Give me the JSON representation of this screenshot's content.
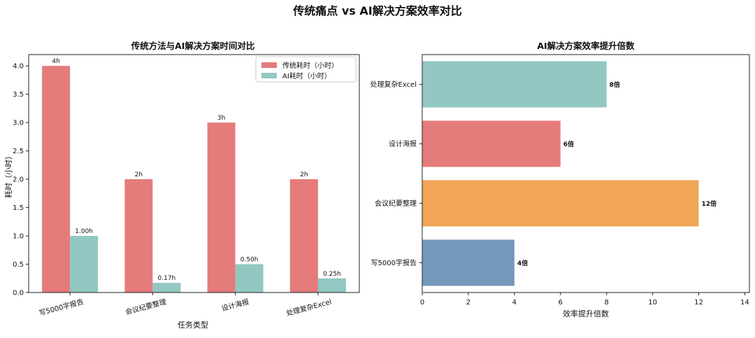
{
  "title": "传统痛点 vs AI解决方案效率对比",
  "colors": {
    "traditional": "#e57b7b",
    "ai": "#92c7c2",
    "bars_right": [
      "#92c7c2",
      "#e57b7b",
      "#f0a656",
      "#7497bc"
    ]
  },
  "chart_data": [
    {
      "type": "bar",
      "title": "传统方法与AI解决方案时间对比",
      "xlabel": "任务类型",
      "ylabel": "耗时（小时）",
      "categories": [
        "写5000字报告",
        "会议纪要整理",
        "设计海报",
        "处理复杂Excel"
      ],
      "series": [
        {
          "name": "传统耗时（小时）",
          "values": [
            4,
            2,
            3,
            2
          ],
          "labels": [
            "4h",
            "2h",
            "3h",
            "2h"
          ]
        },
        {
          "name": "AI耗时（小时）",
          "values": [
            1.0,
            0.17,
            0.5,
            0.25
          ],
          "labels": [
            "1.00h",
            "0.17h",
            "0.50h",
            "0.25h"
          ]
        }
      ],
      "ylim": [
        0,
        4.2
      ],
      "yticks": [
        "0.0",
        "0.5",
        "1.0",
        "1.5",
        "2.0",
        "2.5",
        "3.0",
        "3.5",
        "4.0"
      ],
      "legend": "top-right",
      "grid": false
    },
    {
      "type": "bar",
      "orientation": "horizontal",
      "title": "AI解决方案效率提升倍数",
      "xlabel": "效率提升倍数",
      "ylabel": "",
      "categories": [
        "处理复杂Excel",
        "设计海报",
        "会议纪要整理",
        "写5000字报告"
      ],
      "values": [
        8,
        6,
        12,
        4
      ],
      "labels": [
        "8倍",
        "6倍",
        "12倍",
        "4倍"
      ],
      "xlim": [
        0,
        14.2
      ],
      "xticks": [
        "0",
        "2",
        "4",
        "6",
        "8",
        "10",
        "12",
        "14"
      ],
      "grid": false
    }
  ]
}
